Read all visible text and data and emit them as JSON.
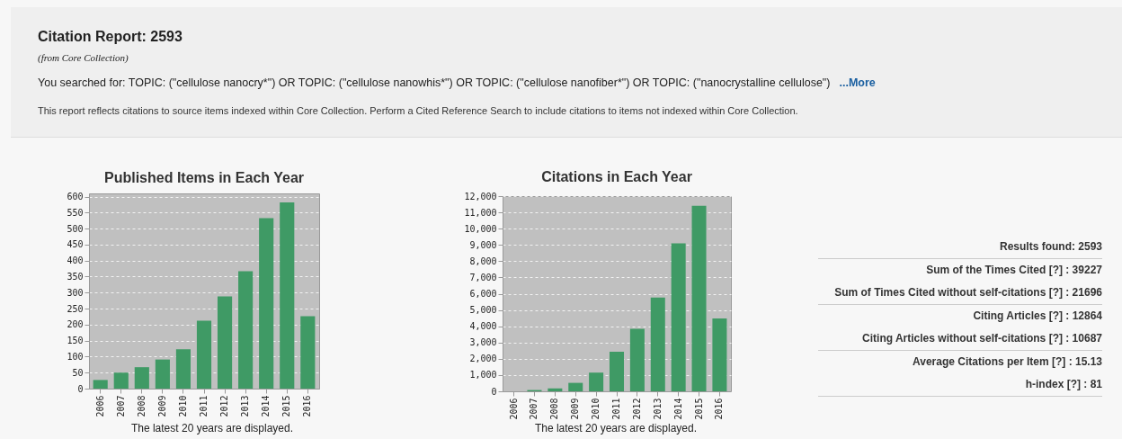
{
  "chart_data": [
    {
      "type": "other",
      "title": "Citation Report: 2593",
      "subtitle": "(from Core Collection)",
      "annotations": [
        "You searched for:  TOPIC: (\"cellulose nanocry*\") OR TOPIC: (\"cellulose nanowhis*\") OR TOPIC: (\"cellulose nanofiber*\") OR TOPIC: (\"nanocrystalline cellulose\")",
        "...More",
        "This report reflects citations to source items indexed within Core Collection. Perform a Cited Reference Search to include citations to items not indexed within Core Collection."
      ]
    },
    {
      "type": "bar",
      "title": "Published Items in Each Year",
      "categories": [
        "2006",
        "2007",
        "2008",
        "2009",
        "2010",
        "2011",
        "2012",
        "2013",
        "2014",
        "2015",
        "2016"
      ],
      "values": [
        27,
        50,
        67,
        91,
        123,
        212,
        288,
        367,
        533,
        582,
        226
      ],
      "color": "#3f9a65",
      "ylim": [
        0,
        610
      ],
      "yticks": [
        0,
        50,
        100,
        150,
        200,
        250,
        300,
        350,
        400,
        450,
        500,
        550,
        600
      ],
      "grid": "y",
      "annotations": [
        "The latest 20 years are displayed."
      ]
    },
    {
      "type": "bar",
      "title": "Citations in Each Year",
      "categories": [
        "2006",
        "2007",
        "2008",
        "2009",
        "2010",
        "2011",
        "2012",
        "2013",
        "2014",
        "2015",
        "2016"
      ],
      "values": [
        null,
        80,
        180,
        520,
        1150,
        2430,
        3850,
        5760,
        9100,
        11400,
        4480
      ],
      "color": "#3f9a65",
      "ylim": [
        0,
        12000
      ],
      "yticks": [
        0,
        {
          "value": 1000,
          "label": "1,000"
        },
        {
          "value": 2000,
          "label": "2,000"
        },
        {
          "value": 3000,
          "label": "3,000"
        },
        {
          "value": 4000,
          "label": "4,000"
        },
        {
          "value": 5000,
          "label": "5,000"
        },
        {
          "value": 6000,
          "label": "6,000"
        },
        {
          "value": 7000,
          "label": "7,000"
        },
        {
          "value": 8000,
          "label": "8,000"
        },
        {
          "value": 9000,
          "label": "9,000"
        },
        {
          "value": 10000,
          "label": "10,000"
        },
        {
          "value": 11000,
          "label": "11,000"
        },
        {
          "value": 12000,
          "label": "12,000"
        }
      ],
      "grid": "y",
      "annotations": [
        "The latest 20 years are displayed."
      ]
    },
    {
      "type": "other",
      "annotations": [
        "Results found:  2593",
        "Sum of the Times Cited [?] :  39227",
        "Sum of Times Cited without self-citations [?] :  21696",
        "Citing Articles [?] :  12864",
        "Citing Articles without self-citations [?] :  10687",
        "Average Citations per Item [?] :  15.13",
        "h-index [?] :  81"
      ]
    }
  ]
}
